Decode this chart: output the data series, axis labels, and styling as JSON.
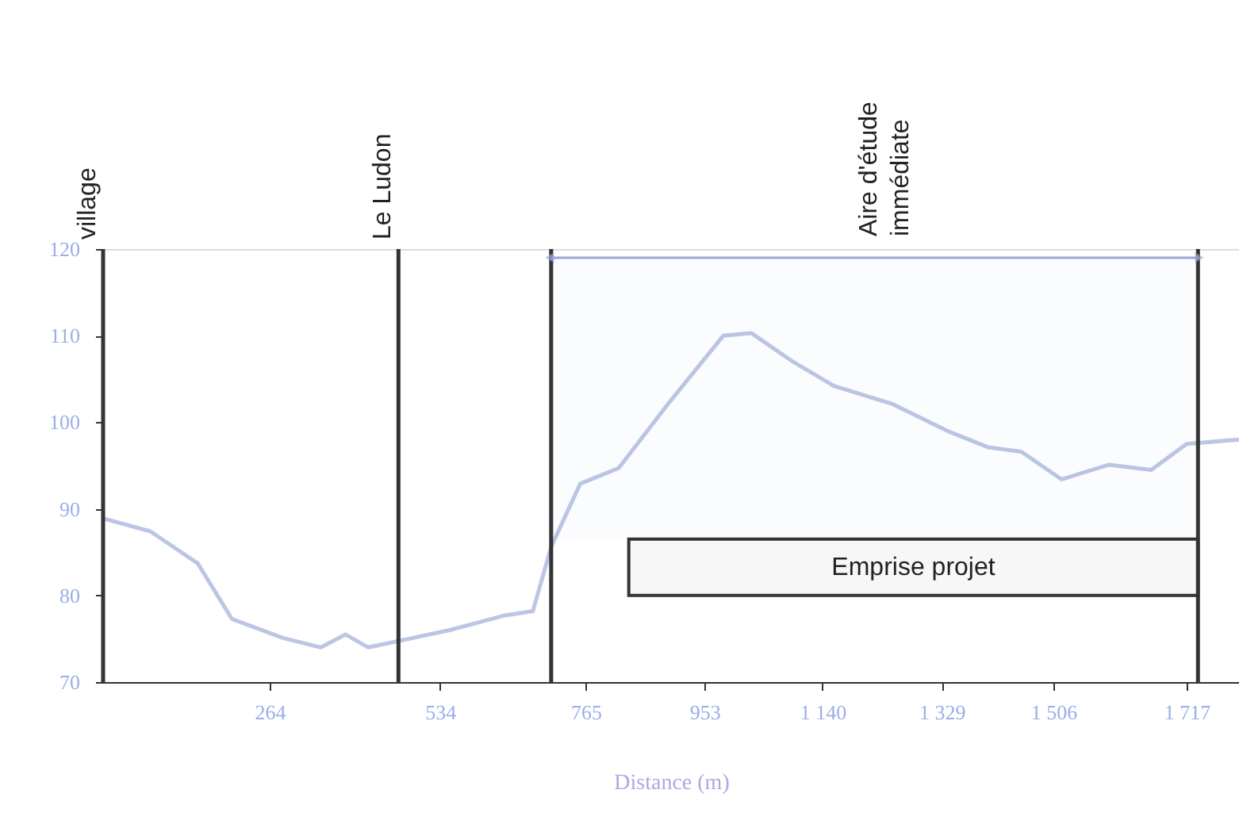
{
  "chart_data": {
    "type": "line",
    "xlabel": "Distance (m)",
    "x": [
      0,
      75,
      150,
      204,
      285,
      345,
      384,
      420,
      459,
      549,
      637,
      681,
      710,
      756,
      817,
      895,
      983,
      1027,
      1093,
      1158,
      1251,
      1341,
      1403,
      1455,
      1519,
      1594,
      1661,
      1717,
      1800
    ],
    "series": [
      {
        "color": "#bcc6e4",
        "values": [
          88.9,
          87.4,
          83.7,
          77.3,
          75.1,
          74.0,
          75.5,
          74.0,
          74.6,
          76.0,
          77.7,
          78.2,
          85.6,
          92.9,
          94.7,
          102.1,
          110.0,
          110.3,
          107.0,
          104.2,
          102.1,
          98.9,
          97.1,
          96.6,
          93.4,
          95.1,
          94.5,
          97.5,
          98.0
        ]
      }
    ],
    "xlim": [
      0,
      1800
    ],
    "xticks": [
      264,
      {
        "value": 534,
        "label": "534"
      },
      765,
      953,
      {
        "value": 1140,
        "label": "1 140"
      },
      {
        "value": 1329,
        "label": "1 329"
      },
      {
        "value": 1506,
        "label": "1 506"
      },
      {
        "value": 1717,
        "label": "1 717"
      }
    ],
    "ylim": [
      70,
      120
    ],
    "yticks": [
      70,
      80,
      90,
      100,
      110,
      120
    ],
    "ref_lines": [
      {
        "axis": "x",
        "value": 0,
        "label": "village",
        "color": "#333333"
      },
      {
        "axis": "x",
        "value": 468,
        "label": "Le Ludon",
        "color": "#333333"
      },
      {
        "axis": "x",
        "value": 710,
        "color": "#333333"
      },
      {
        "axis": "x",
        "value": 1735,
        "color": "#333333"
      }
    ],
    "bands": [
      {
        "axis": "x",
        "from": 710,
        "to": 1735,
        "label": "Aire d'étude\nimmédiate",
        "color": "#9aa6d8"
      },
      {
        "axis": "x",
        "from": 833,
        "to": 1735,
        "label": "Emprise projet",
        "color": "#333333"
      }
    ],
    "grid": false,
    "marker": "none",
    "line_style": "solid"
  }
}
